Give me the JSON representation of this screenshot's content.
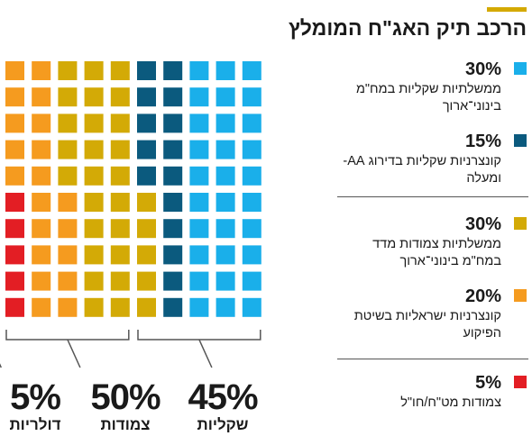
{
  "title": "הרכב תיק האג\"ח המומלץ",
  "colors": {
    "accent": "#D4A900",
    "light_blue": "#1AAFEA",
    "dark_blue": "#0B5A7E",
    "mustard": "#D3AA06",
    "orange": "#F59B1F",
    "red": "#E31E24",
    "bracket": "#555555"
  },
  "chart_data": {
    "type": "waffle",
    "grid": {
      "rows": 10,
      "cols": 10
    },
    "series": [
      {
        "name": "ממשלתיות שקליות במח\"מ בינוני־ארוך",
        "value": 30,
        "color": "#1AAFEA"
      },
      {
        "name": "קונצרניות שקליות בדירוג AA- ומעלה",
        "value": 15,
        "color": "#0B5A7E"
      },
      {
        "name": "ממשלתיות צמודות מדד במח\"מ בינוני־ארוך",
        "value": 30,
        "color": "#D3AA06"
      },
      {
        "name": "קונצרניות ישראליות בשיטת הפיקוע",
        "value": 20,
        "color": "#F59B1F"
      },
      {
        "name": "צמודות מט\"ח/חו\"ל",
        "value": 5,
        "color": "#E31E24"
      }
    ],
    "groups": [
      {
        "pct": "45%",
        "label": "שקליות",
        "value": 45
      },
      {
        "pct": "50%",
        "label": "צמודות",
        "value": 50
      },
      {
        "pct": "5%",
        "label": "דולריות",
        "value": 5
      }
    ]
  },
  "legend": [
    {
      "pct": "30%",
      "text": "ממשלתיות שקליות במח\"מ בינוני־ארוך",
      "color": "#1AAFEA"
    },
    {
      "pct": "15%",
      "text": "קונצרניות שקליות בדירוג AA- ומעלה",
      "color": "#0B5A7E"
    },
    {
      "pct": "30%",
      "text": "ממשלתיות צמודות מדד במח\"מ בינוני־ארוך",
      "color": "#D3AA06"
    },
    {
      "pct": "20%",
      "text": "קונצרניות ישראליות בשיטת הפיקוע",
      "color": "#F59B1F"
    },
    {
      "pct": "5%",
      "text": "צמודות מט\"ח/חו\"ל",
      "color": "#E31E24"
    }
  ]
}
